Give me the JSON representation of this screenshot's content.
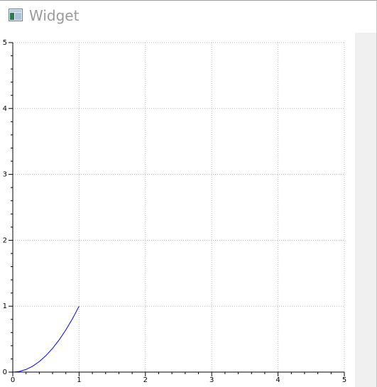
{
  "window": {
    "title": "Widget",
    "icon": "widget-app-icon"
  },
  "colors": {
    "curve": "#0000ff",
    "grid": "#b4b4b4",
    "axis": "#000000",
    "side_panel": "#f0f0f0"
  },
  "chart_data": {
    "type": "line",
    "title": "",
    "xlabel": "",
    "ylabel": "",
    "xlim": [
      0,
      5
    ],
    "ylim": [
      0,
      5
    ],
    "x_ticks": [
      "0",
      "1",
      "2",
      "3",
      "4",
      "5"
    ],
    "y_ticks": [
      "0",
      "1",
      "2",
      "3",
      "4",
      "5"
    ],
    "grid": true,
    "series": [
      {
        "x": [
          0,
          0.1,
          0.2,
          0.3,
          0.4,
          0.5,
          0.6,
          0.7,
          0.8,
          0.9,
          1.0
        ],
        "values": [
          0,
          0.01,
          0.04,
          0.09,
          0.16,
          0.25,
          0.36,
          0.49,
          0.64,
          0.81,
          1.0
        ]
      }
    ]
  }
}
